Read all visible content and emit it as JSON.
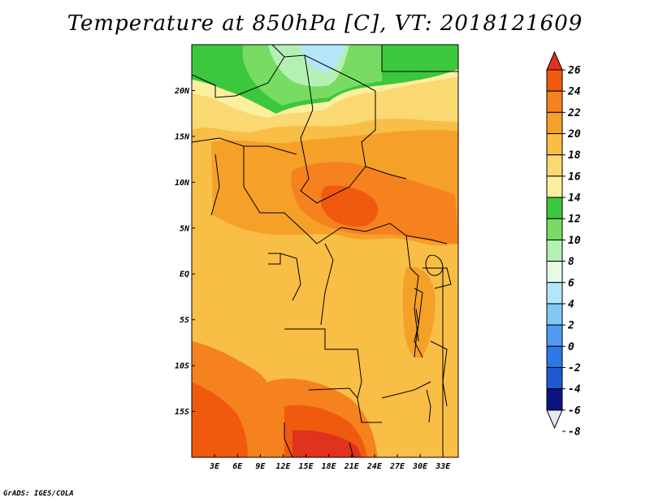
{
  "title": "Temperature at 850hPa [C], VT: 2018121609",
  "credit": "GrADS: IGES/COLA",
  "map": {
    "lon_range": [
      0,
      35
    ],
    "lat_range": [
      -20,
      25
    ],
    "x_ticks": [
      "3E",
      "6E",
      "9E",
      "12E",
      "15E",
      "18E",
      "21E",
      "24E",
      "27E",
      "30E",
      "33E"
    ],
    "x_tick_values": [
      3,
      6,
      9,
      12,
      15,
      18,
      21,
      24,
      27,
      30,
      33
    ],
    "y_ticks": [
      "20N",
      "15N",
      "10N",
      "5N",
      "EQ",
      "5S",
      "10S",
      "15S"
    ],
    "y_tick_values": [
      20,
      15,
      10,
      5,
      0,
      -5,
      -10,
      -15
    ]
  },
  "colorbar": {
    "labels": [
      "26",
      "24",
      "22",
      "20",
      "18",
      "16",
      "14",
      "12",
      "10",
      "8",
      "6",
      "4",
      "2",
      "0",
      "-2",
      "-4",
      "-6",
      "-8"
    ],
    "colors": [
      "#e0321c",
      "#f05a0f",
      "#f5821e",
      "#f5a028",
      "#f8be46",
      "#fad872",
      "#fcf0a0",
      "#3cc83c",
      "#78dc64",
      "#b4f0b4",
      "#e6fae6",
      "#b4e6fa",
      "#82c8f5",
      "#509bf0",
      "#2d78e6",
      "#1e5ad2",
      "#0f3cb4",
      "#0a1482"
    ]
  },
  "colors": {
    "warm_dark": "#e0321c",
    "warm": "#f05a0f",
    "orange": "#f5821e",
    "light_orange": "#f5a028",
    "yellow_orange": "#f8be46",
    "pale_yellow": "#fad872",
    "green": "#3cc83c",
    "light_green": "#78dc64",
    "pale_green": "#b4f0b4",
    "pale_blue": "#b4e6fa"
  }
}
